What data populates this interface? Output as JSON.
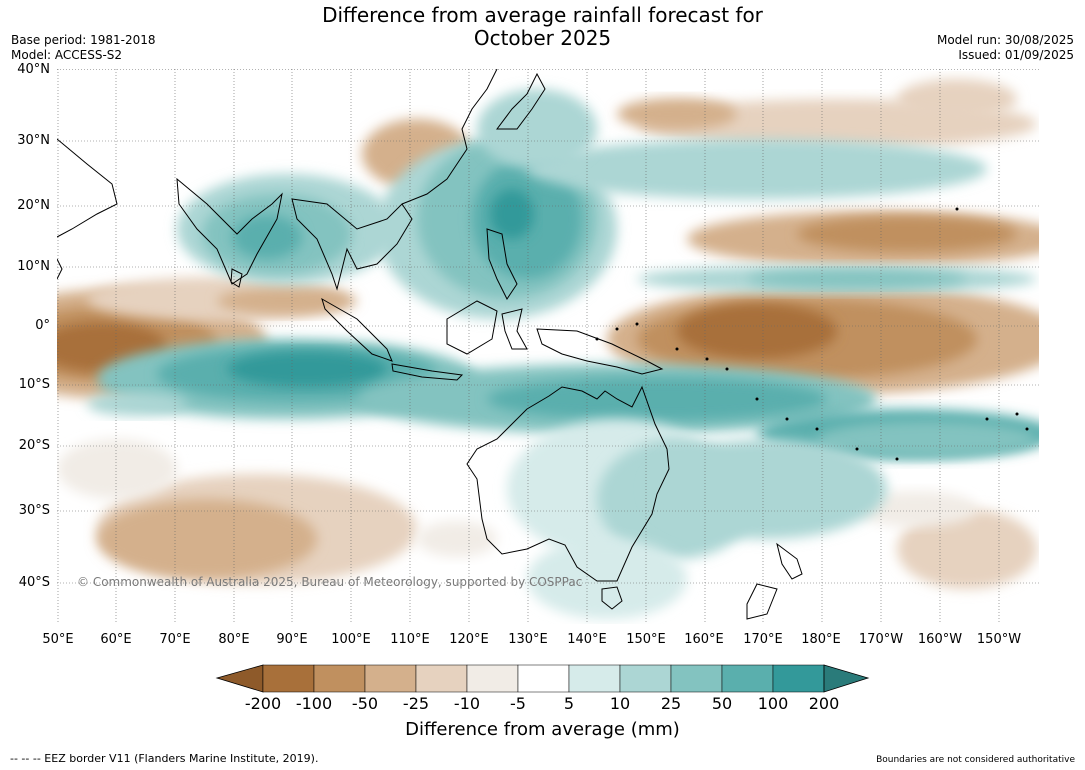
{
  "title_line1": "Difference from average rainfall forecast for",
  "title_line2": "October 2025",
  "base_period": "Base period: 1981-2018",
  "model": "Model: ACCESS-S2",
  "model_run": "Model run: 30/08/2025",
  "issued": "Issued: 01/09/2025",
  "lat_labels": [
    "40°N",
    "30°N",
    "20°N",
    "10°N",
    "0°",
    "10°S",
    "20°S",
    "30°S",
    "40°S"
  ],
  "lon_labels": [
    "50°E",
    "60°E",
    "70°E",
    "80°E",
    "90°E",
    "100°E",
    "110°E",
    "120°E",
    "130°E",
    "140°E",
    "150°E",
    "160°E",
    "170°E",
    "180°E",
    "170°W",
    "160°W",
    "150°W"
  ],
  "colorbar": {
    "ticks": [
      "-200",
      "-100",
      "-50",
      "-25",
      "-10",
      "-5",
      "5",
      "10",
      "25",
      "50",
      "100",
      "200"
    ],
    "colors": [
      "#8e5a2a",
      "#a8703a",
      "#c0905f",
      "#d4b08c",
      "#e6d2bf",
      "#f1ece6",
      "#ffffff",
      "#d6ebea",
      "#acd6d4",
      "#83c3c0",
      "#5aafad",
      "#33999a",
      "#2a7b7a"
    ],
    "label": "Difference from average (mm)"
  },
  "copyright": "© Commonwealth of Australia 2025, Bureau of Meteorology, supported by COSPPac",
  "footer_left": "--  --  -- EEZ border V11 (Flanders Marine Institute, 2019).",
  "footer_right": "Boundaries are not considered authoritative"
}
